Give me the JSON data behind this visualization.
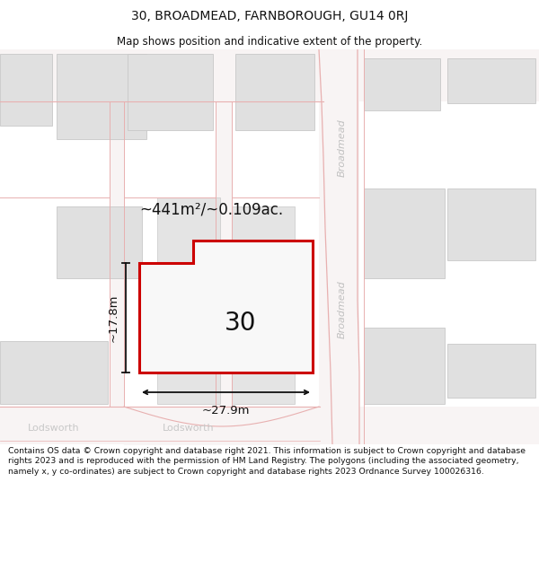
{
  "title_line1": "30, BROADMEAD, FARNBOROUGH, GU14 0RJ",
  "title_line2": "Map shows position and indicative extent of the property.",
  "footer_text": "Contains OS data © Crown copyright and database right 2021. This information is subject to Crown copyright and database rights 2023 and is reproduced with the permission of HM Land Registry. The polygons (including the associated geometry, namely x, y co-ordinates) are subject to Crown copyright and database rights 2023 Ordnance Survey 100026316.",
  "map_bg": "#efefef",
  "plot_bg": "#ffffff",
  "building_fill": "#e0e0e0",
  "building_stroke": "#c8c8c8",
  "highlight_fill": "#f8f8f8",
  "highlight_stroke": "#cc0000",
  "road_fill": "#f8f4f4",
  "road_line": "#e8b0b0",
  "dim_color": "#111111",
  "area_text": "~441m²/~0.109ac.",
  "width_text": "~27.9m",
  "height_text": "~17.8m",
  "label_text": "30",
  "broadmead_label": "Broadmead",
  "lodsworth_label": "Lodsworth"
}
